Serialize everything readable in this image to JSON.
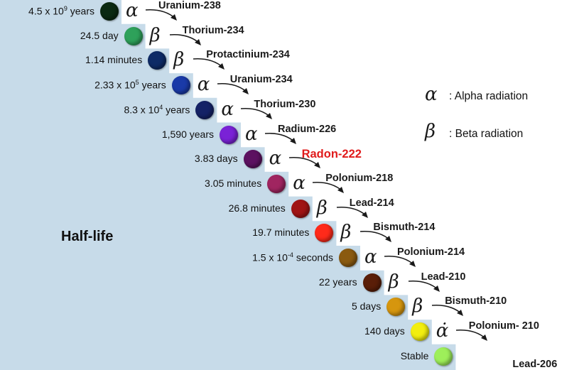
{
  "title": "Half-life",
  "legend": [
    {
      "symbol": "α",
      "text": ": Alpha radiation"
    },
    {
      "symbol": "β",
      "text": ": Beta radiation"
    }
  ],
  "chain": [
    {
      "half_life": "4.5 x 10",
      "exp": "9",
      "half_life_suffix": " years",
      "nuclide": "Uranium-238",
      "decay": "α",
      "color": "#0b2a12"
    },
    {
      "half_life": "24.5 day",
      "exp": "",
      "half_life_suffix": "",
      "nuclide": "Thorium-234",
      "decay": "β",
      "color": "#2ea15a"
    },
    {
      "half_life": "1.14 minutes",
      "exp": "",
      "half_life_suffix": "",
      "nuclide": "Protactinium-234",
      "decay": "β",
      "color": "#0e2b66"
    },
    {
      "half_life": "2.33 x 10",
      "exp": "5",
      "half_life_suffix": " years",
      "nuclide": "Uranium-234",
      "decay": "α",
      "color": "#1a3aa8"
    },
    {
      "half_life": "8.3 x 10",
      "exp": "4",
      "half_life_suffix": " years",
      "nuclide": "Thorium-230",
      "decay": "α",
      "color": "#142266"
    },
    {
      "half_life": "1,590 years",
      "exp": "",
      "half_life_suffix": "",
      "nuclide": "Radium-226",
      "decay": "α",
      "color": "#7a22d6"
    },
    {
      "half_life": "3.83 days",
      "exp": "",
      "half_life_suffix": "",
      "nuclide": "Radon-222",
      "decay": "α",
      "color": "#5c1160",
      "highlight": true
    },
    {
      "half_life": "3.05 minutes",
      "exp": "",
      "half_life_suffix": "",
      "nuclide": "Polonium-218",
      "decay": "α",
      "color": "#a02560"
    },
    {
      "half_life": "26.8 minutes",
      "exp": "",
      "half_life_suffix": "",
      "nuclide": "Lead-214",
      "decay": "β",
      "color": "#a01414"
    },
    {
      "half_life": "19.7 minutes",
      "exp": "",
      "half_life_suffix": "",
      "nuclide": "Bismuth-214",
      "decay": "β",
      "color": "#ff2a1a"
    },
    {
      "half_life": "1.5 x 10",
      "exp": "-4",
      "half_life_suffix": " seconds",
      "nuclide": "Polonium-214",
      "decay": "α",
      "color": "#8a5a10"
    },
    {
      "half_life": "22 years",
      "exp": "",
      "half_life_suffix": "",
      "nuclide": "Lead-210",
      "decay": "β",
      "color": "#5a1e08"
    },
    {
      "half_life": "5 days",
      "exp": "",
      "half_life_suffix": "",
      "nuclide": "Bismuth-210",
      "decay": "β",
      "color": "#d6960e"
    },
    {
      "half_life": "140 days",
      "exp": "",
      "half_life_suffix": "",
      "nuclide": "Polonium- 210",
      "decay": "α̇",
      "color": "#f2ee10"
    },
    {
      "half_life": "Stable",
      "exp": "",
      "half_life_suffix": "",
      "nuclide": "Lead-206",
      "decay": "",
      "color": "#9eef5a"
    }
  ]
}
